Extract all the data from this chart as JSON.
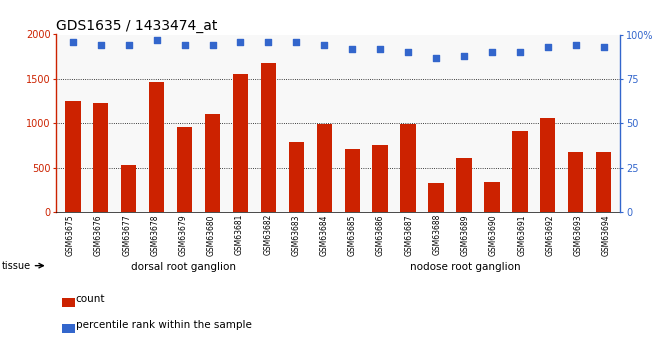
{
  "title": "GDS1635 / 1433474_at",
  "categories": [
    "GSM63675",
    "GSM63676",
    "GSM63677",
    "GSM63678",
    "GSM63679",
    "GSM63680",
    "GSM63681",
    "GSM63682",
    "GSM63683",
    "GSM63684",
    "GSM63685",
    "GSM63686",
    "GSM63687",
    "GSM63688",
    "GSM63689",
    "GSM63690",
    "GSM63691",
    "GSM63692",
    "GSM63693",
    "GSM63694"
  ],
  "bar_values": [
    1250,
    1230,
    530,
    1470,
    960,
    1100,
    1550,
    1680,
    790,
    990,
    710,
    760,
    990,
    330,
    605,
    340,
    910,
    1060,
    680,
    680
  ],
  "scatter_values": [
    96,
    94,
    94,
    97,
    94,
    94,
    96,
    96,
    96,
    94,
    92,
    92,
    90,
    87,
    88,
    90,
    90,
    93,
    94,
    93
  ],
  "bar_color": "#cc2200",
  "scatter_color": "#3366cc",
  "ylim_left": [
    0,
    2000
  ],
  "ylim_right": [
    0,
    100
  ],
  "yticks_left": [
    0,
    500,
    1000,
    1500,
    2000
  ],
  "yticks_right": [
    0,
    25,
    50,
    75,
    100
  ],
  "groups": [
    {
      "label": "dorsal root ganglion",
      "start": 0,
      "end": 9,
      "color": "#ccffcc"
    },
    {
      "label": "nodose root ganglion",
      "start": 9,
      "end": 20,
      "color": "#44cc44"
    }
  ],
  "tissue_label": "tissue",
  "legend_count": "count",
  "legend_percentile": "percentile rank within the sample",
  "tick_fontsize": 7,
  "title_fontsize": 10
}
